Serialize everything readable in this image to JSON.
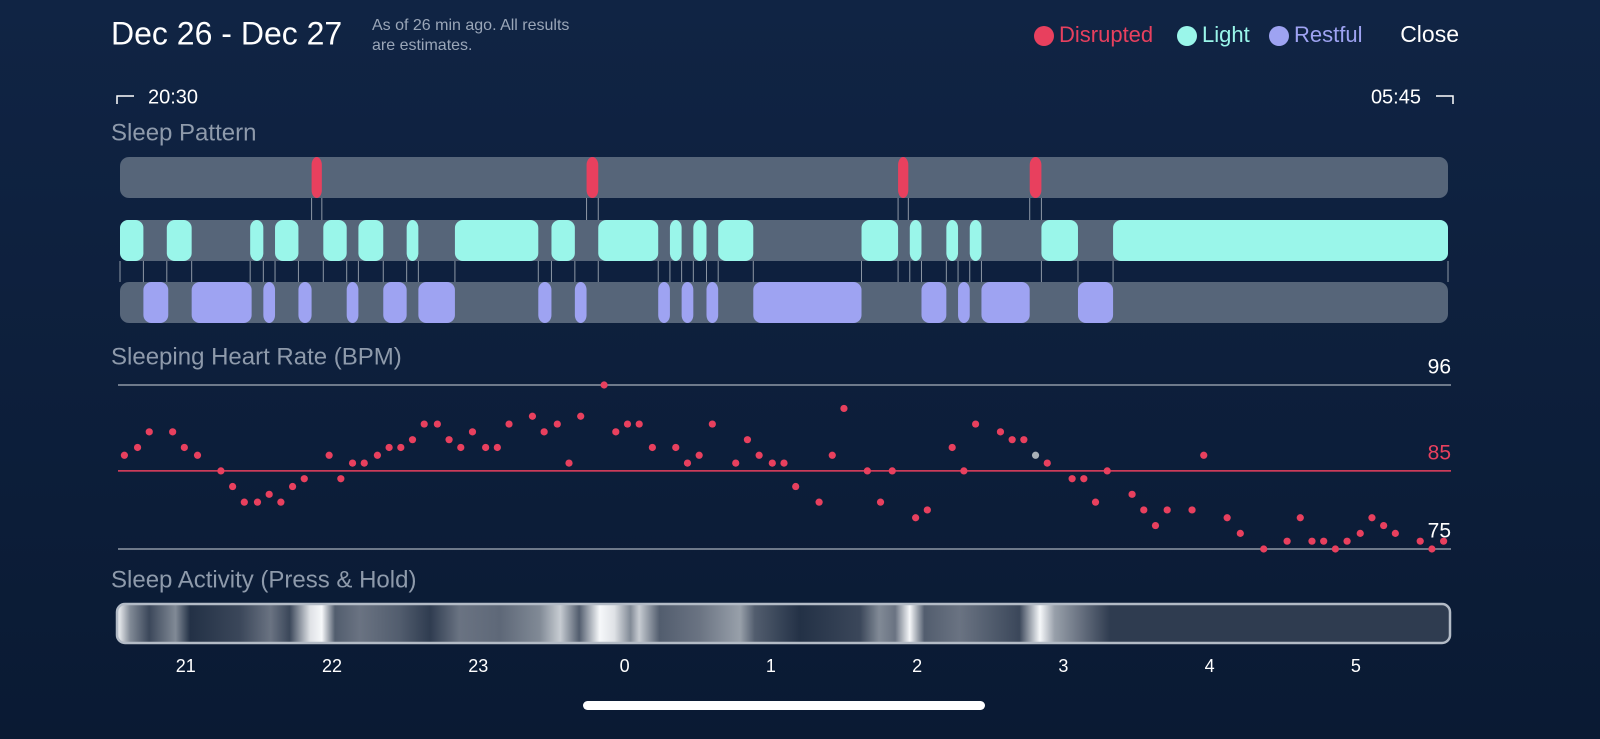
{
  "header": {
    "title": "Dec 26 - Dec 27",
    "subtitle": [
      "As of 26 min ago. All results",
      "are estimates."
    ],
    "close": "Close"
  },
  "time_range": {
    "start": "20:30",
    "end": "05:45"
  },
  "time_axis": {
    "xlim": [
      -3.45,
      5.63
    ],
    "xticks": [
      {
        "value": -3,
        "label": "21"
      },
      {
        "value": -2,
        "label": "22"
      },
      {
        "value": -1,
        "label": "23"
      },
      0,
      1,
      2,
      3,
      4,
      5
    ]
  },
  "chart_data": [
    {
      "type": "timeline",
      "title": "Sleep Pattern",
      "series": [
        {
          "name": "Disrupted",
          "color": "#e8405e",
          "segments": [
            [
              -2.14,
              -2.07
            ],
            [
              -0.26,
              -0.18
            ],
            [
              1.87,
              1.94
            ],
            [
              2.77,
              2.85
            ]
          ]
        },
        {
          "name": "Light",
          "color": "#9af6ea",
          "segments": [
            [
              -3.45,
              -3.29
            ],
            [
              -3.13,
              -2.96
            ],
            [
              -2.56,
              -2.47
            ],
            [
              -2.39,
              -2.23
            ],
            [
              -2.06,
              -1.9
            ],
            [
              -1.82,
              -1.65
            ],
            [
              -1.49,
              -1.41
            ],
            [
              -1.16,
              -0.59
            ],
            [
              -0.5,
              -0.34
            ],
            [
              -0.18,
              0.23
            ],
            [
              0.31,
              0.39
            ],
            [
              0.47,
              0.56
            ],
            [
              0.64,
              0.88
            ],
            [
              1.62,
              1.87
            ],
            [
              1.95,
              2.03
            ],
            [
              2.2,
              2.28
            ],
            [
              2.36,
              2.44
            ],
            [
              2.85,
              3.1
            ],
            [
              3.34,
              5.63
            ]
          ]
        },
        {
          "name": "Restful",
          "color": "#9ea3f2",
          "segments": [
            [
              -3.29,
              -3.12
            ],
            [
              -2.96,
              -2.55
            ],
            [
              -2.47,
              -2.39
            ],
            [
              -2.23,
              -2.14
            ],
            [
              -1.9,
              -1.82
            ],
            [
              -1.65,
              -1.49
            ],
            [
              -1.41,
              -1.16
            ],
            [
              -0.59,
              -0.5
            ],
            [
              -0.34,
              -0.26
            ],
            [
              0.23,
              0.31
            ],
            [
              0.39,
              0.47
            ],
            [
              0.56,
              0.64
            ],
            [
              0.88,
              1.62
            ],
            [
              2.03,
              2.2
            ],
            [
              2.28,
              2.36
            ],
            [
              2.44,
              2.77
            ],
            [
              3.1,
              3.34
            ]
          ]
        }
      ]
    },
    {
      "type": "scatter",
      "title": "Sleeping Heart Rate (BPM)",
      "color": "#e8405e",
      "ylim": [
        75,
        96
      ],
      "yticks": [
        75,
        85,
        96
      ],
      "tick_colors": [
        "#ffffff",
        "#e8405e",
        "#ffffff"
      ],
      "highlight": {
        "index": 64,
        "color": "#a9b1b8"
      },
      "x": [
        -3.42,
        -3.33,
        -3.25,
        -3.09,
        -3.01,
        -2.92,
        -2.76,
        -2.68,
        -2.6,
        -2.51,
        -2.43,
        -2.35,
        -2.27,
        -2.19,
        -2.02,
        -1.94,
        -1.86,
        -1.78,
        -1.69,
        -1.61,
        -1.53,
        -1.45,
        -1.37,
        -1.28,
        -1.2,
        -1.12,
        -1.04,
        -0.95,
        -0.87,
        -0.79,
        -0.63,
        -0.55,
        -0.46,
        -0.38,
        -0.3,
        -0.14,
        -0.06,
        0.02,
        0.1,
        0.19,
        0.35,
        0.43,
        0.51,
        0.6,
        0.76,
        0.84,
        0.92,
        1.01,
        1.09,
        1.17,
        1.33,
        1.42,
        1.5,
        1.66,
        1.75,
        1.83,
        1.99,
        2.07,
        2.24,
        2.32,
        2.4,
        2.57,
        2.65,
        2.73,
        2.81,
        2.89,
        3.06,
        3.14,
        3.22,
        3.3,
        3.47,
        3.55,
        3.63,
        3.71,
        3.88,
        3.96,
        4.12,
        4.21,
        4.37,
        4.53,
        4.62,
        4.7,
        4.78,
        4.86,
        4.94,
        5.03,
        5.11,
        5.19,
        5.27,
        5.44,
        5.52,
        5.6
      ],
      "values": [
        87,
        88,
        90,
        90,
        88,
        87,
        85,
        83,
        81,
        81,
        82,
        81,
        83,
        84,
        87,
        84,
        86,
        86,
        87,
        88,
        88,
        89,
        91,
        91,
        89,
        88,
        90,
        88,
        88,
        91,
        92,
        90,
        91,
        86,
        92,
        96,
        90,
        91,
        91,
        88,
        88,
        86,
        87,
        91,
        86,
        89,
        87,
        86,
        86,
        83,
        81,
        87,
        93,
        85,
        81,
        85,
        79,
        80,
        88,
        85,
        91,
        90,
        89,
        89,
        87,
        86,
        84,
        84,
        81,
        85,
        82,
        80,
        78,
        80,
        80,
        87,
        79,
        77,
        75,
        76,
        79,
        76,
        76,
        75,
        76,
        77,
        79,
        78,
        77,
        76,
        75,
        76
      ]
    },
    {
      "type": "heatstrip",
      "title": "Sleep Activity (Press & Hold)",
      "x": [
        -3.45,
        -3.38,
        -3.25,
        -3.07,
        -2.97,
        -2.63,
        -2.42,
        -2.29,
        -2.15,
        -2.07,
        -1.98,
        -1.81,
        -1.54,
        -1.33,
        -1.13,
        -0.85,
        -0.58,
        -0.44,
        -0.31,
        -0.17,
        -0.07,
        0.04,
        0.1,
        0.24,
        0.51,
        0.79,
        0.89,
        1.2,
        1.61,
        1.74,
        1.85,
        1.95,
        2.05,
        2.29,
        2.5,
        2.7,
        2.84,
        2.94,
        3.11,
        3.32,
        5.63
      ],
      "values": [
        0.9,
        0.5,
        0.2,
        0.5,
        0.1,
        0.2,
        0.4,
        0.2,
        0.9,
        1.0,
        0.3,
        0.4,
        0.3,
        0.15,
        0.4,
        0.35,
        0.5,
        0.8,
        0.3,
        1.0,
        0.9,
        0.5,
        0.8,
        0.3,
        0.4,
        0.6,
        0.3,
        0.1,
        0.2,
        0.5,
        0.4,
        1.0,
        0.3,
        0.4,
        0.3,
        0.2,
        1.0,
        0.6,
        0.4,
        0.15,
        0.15
      ]
    }
  ]
}
